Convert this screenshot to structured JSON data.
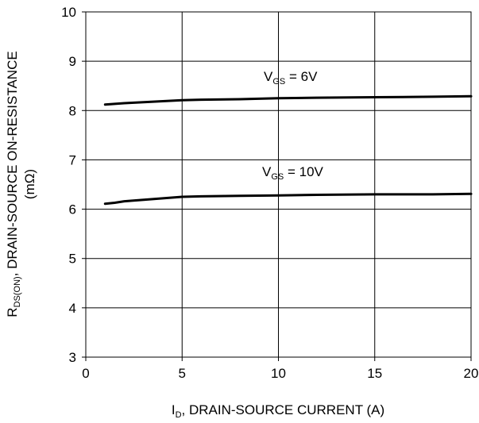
{
  "chart_data": {
    "type": "line",
    "xlabel_main": "I",
    "xlabel_sub": "D",
    "xlabel_rest": ", DRAIN-SOURCE CURRENT (A)",
    "ylabel_main": "R",
    "ylabel_sub": "DS(ON)",
    "ylabel_rest": ", DRAIN-SOURCE ON-RESISTANCE",
    "ylabel_line2": "(mΩ)",
    "xlim": [
      0,
      20
    ],
    "ylim": [
      3,
      10
    ],
    "xticks": [
      "0",
      "5",
      "10",
      "15",
      "20"
    ],
    "yticks": [
      "3",
      "4",
      "5",
      "6",
      "7",
      "8",
      "9",
      "10"
    ],
    "grid": true,
    "series": [
      {
        "label_main": "V",
        "label_sub": "GS",
        "label_rest": " = 6V",
        "x": [
          1,
          2,
          3,
          4,
          5,
          6,
          8,
          10,
          12,
          15,
          18,
          20
        ],
        "y": [
          8.12,
          8.15,
          8.17,
          8.19,
          8.21,
          8.22,
          8.23,
          8.25,
          8.26,
          8.27,
          8.28,
          8.29
        ]
      },
      {
        "label_main": "V",
        "label_sub": "GS",
        "label_rest": " = 10V",
        "x": [
          1,
          1.5,
          2,
          3,
          4,
          5,
          6,
          8,
          10,
          12,
          15,
          18,
          20
        ],
        "y": [
          6.11,
          6.13,
          6.16,
          6.19,
          6.22,
          6.25,
          6.26,
          6.27,
          6.28,
          6.29,
          6.3,
          6.3,
          6.31
        ]
      }
    ]
  }
}
